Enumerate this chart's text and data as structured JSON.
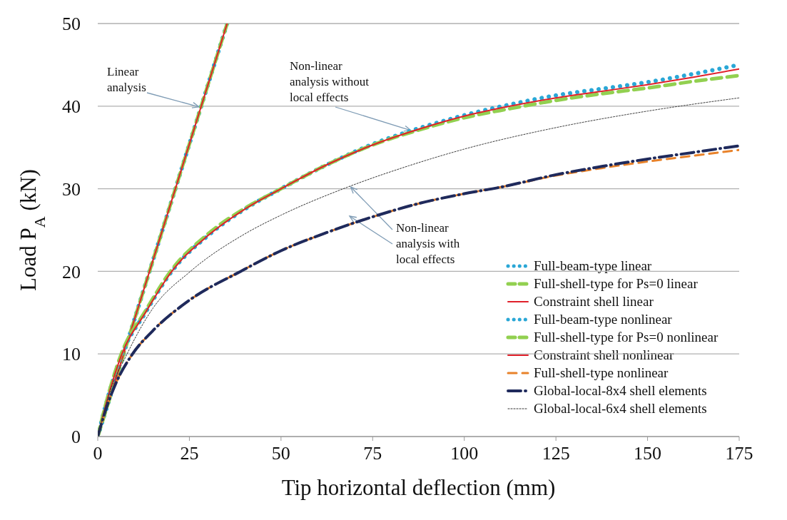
{
  "chart_data": {
    "type": "line",
    "xlabel": "Tip horizontal deflection (mm)",
    "ylabel": "Load P$_{A}$ (kN)",
    "xlim": [
      0,
      175
    ],
    "xticks": [
      0,
      25,
      50,
      75,
      100,
      125,
      150,
      175
    ],
    "ylim": [
      0,
      50
    ],
    "yticks": [
      0,
      10,
      20,
      30,
      40,
      50
    ],
    "grid": "y",
    "legend": "bottom right",
    "marker": "none",
    "annotations": [
      {
        "text": "Linear analysis",
        "x": 28,
        "y": 40
      },
      {
        "text": "Non-linear analysis without local effects",
        "x": 86,
        "y": 36.8
      },
      {
        "text": "Non-linear analysis with local effects",
        "x": 69,
        "y": 30.4
      }
    ],
    "series": [
      {
        "name": "Full-beam-type linear",
        "color": "#2aa7d6",
        "line_style": "dotted",
        "x": [
          0,
          35.3
        ],
        "values": [
          0,
          50
        ]
      },
      {
        "name": "Full-shell-type for Ps=0 linear",
        "color": "#92d050",
        "line_style": "dashed",
        "x": [
          0,
          35.3
        ],
        "values": [
          0,
          50
        ]
      },
      {
        "name": "Constraint shell linear",
        "color": "#e0202a",
        "line_style": "solid",
        "x": [
          0,
          35.3
        ],
        "values": [
          0,
          50
        ]
      },
      {
        "name": "Full-beam-type nonlinear",
        "color": "#2aa7d6",
        "line_style": "dotted",
        "x": [
          0,
          2,
          6.6,
          13,
          20.2,
          30,
          40,
          50,
          62.5,
          75,
          87.5,
          100,
          112.5,
          125,
          137.5,
          150,
          162.5,
          175
        ],
        "values": [
          0,
          3.5,
          10,
          15,
          20,
          24.3,
          27.5,
          30,
          32.9,
          35.4,
          37.3,
          38.9,
          40.2,
          41.3,
          42.1,
          42.9,
          43.9,
          45
        ]
      },
      {
        "name": "Full-shell-type for Ps=0 nonlinear",
        "color": "#92d050",
        "line_style": "dashed",
        "x": [
          0,
          2,
          6.6,
          13,
          20.2,
          30,
          40,
          50,
          62.5,
          75,
          87.5,
          100,
          112.5,
          125,
          137.5,
          150,
          162.5,
          175
        ],
        "values": [
          0,
          3.6,
          10.2,
          15.2,
          20.2,
          24.5,
          27.6,
          30,
          32.9,
          35.3,
          37.1,
          38.6,
          39.7,
          40.7,
          41.5,
          42.2,
          43,
          43.7
        ]
      },
      {
        "name": "Constraint shell nonlinear",
        "color": "#e0202a",
        "line_style": "solid",
        "x": [
          0,
          2,
          6.6,
          13,
          20.2,
          30,
          40,
          50,
          62.5,
          75,
          87.5,
          100,
          112.5,
          125,
          137.5,
          150,
          162.5,
          175
        ],
        "values": [
          0,
          3.5,
          10,
          15,
          20,
          24.3,
          27.5,
          30,
          32.9,
          35.3,
          37.2,
          38.8,
          40,
          41,
          41.8,
          42.6,
          43.5,
          44.5
        ]
      },
      {
        "name": "Full-shell-type nonlinear",
        "color": "#e8822a",
        "line_style": "dashed",
        "x": [
          0,
          2,
          5,
          9.5,
          15,
          25,
          39,
          50,
          62.5,
          75,
          87.5,
          100,
          110,
          125,
          137.5,
          150,
          162.5,
          175
        ],
        "values": [
          0,
          3,
          6.5,
          10,
          12.8,
          16.5,
          20,
          22.5,
          24.7,
          26.6,
          28.2,
          29.4,
          30.2,
          31.6,
          32.5,
          33.3,
          34,
          34.7
        ]
      },
      {
        "name": "Global-local-8x4 shell elements",
        "color": "#1f2a5c",
        "line_style": "dashed",
        "x": [
          0,
          2,
          5,
          9.5,
          15,
          25,
          39,
          50,
          62.5,
          75,
          87.5,
          100,
          110,
          125,
          137.5,
          150,
          162.5,
          175
        ],
        "values": [
          0,
          3,
          6.5,
          10,
          12.8,
          16.5,
          20,
          22.5,
          24.7,
          26.6,
          28.2,
          29.4,
          30.2,
          31.7,
          32.7,
          33.6,
          34.4,
          35.2
        ]
      },
      {
        "name": "Global-local-6x4 shell elements",
        "color": "#333333",
        "line_style": "dotted",
        "x": [
          0,
          3,
          8,
          15,
          25.3,
          40,
          50,
          67,
          85,
          100,
          125,
          150,
          175
        ],
        "values": [
          0,
          5,
          10,
          15.5,
          20,
          24.5,
          26.8,
          30,
          32.8,
          34.8,
          37.4,
          39.4,
          41
        ]
      }
    ]
  }
}
